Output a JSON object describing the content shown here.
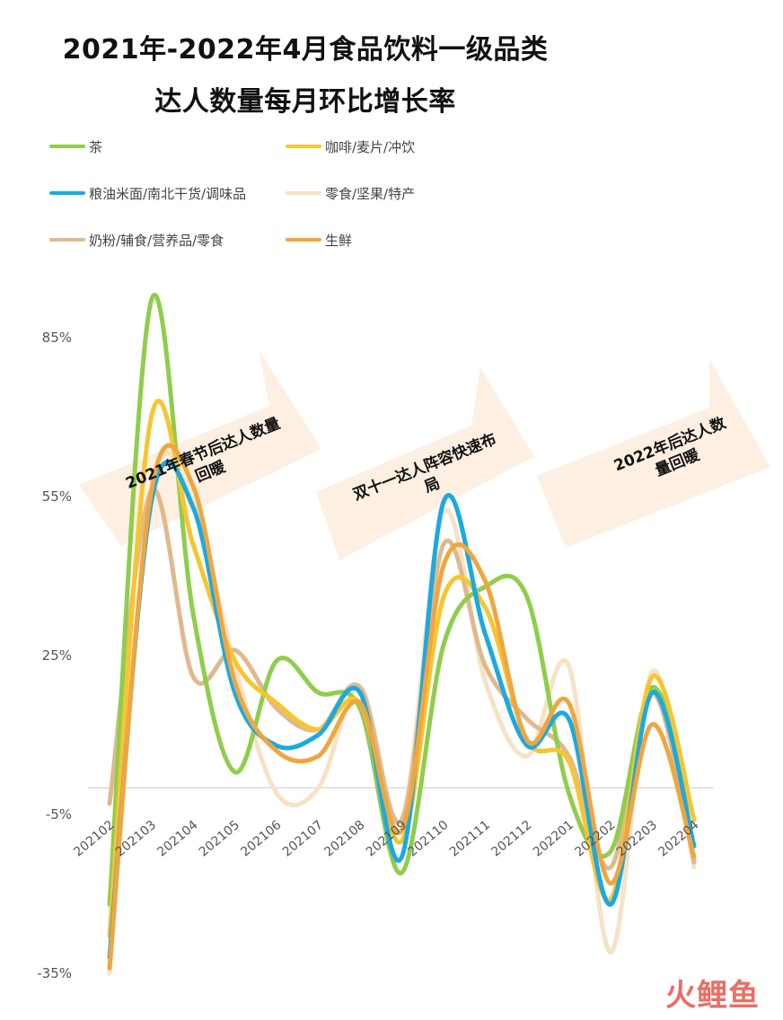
{
  "title_line1": "2021年-2022年4月食品饮料一级品类",
  "title_line2": "达人数量每月环比增长率",
  "watermark": "火鲤鱼",
  "colors": {
    "茶": "#8fcd4c",
    "咖啡/麦片/冲饮": "#f7c531",
    "粮油米面/南北干货/调味品": "#1ba9e1",
    "零食/坚果/特产": "#f6e2c4",
    "奶粉/辅食/营养品/零食": "#dfb98e",
    "生鲜": "#f0a640",
    "arrow": "#fcebd9"
  },
  "annotations": [
    {
      "line1": "2021年春节后达人数量",
      "line2": "回暖"
    },
    {
      "line1": "双十一达人阵容快速布",
      "line2": "局"
    },
    {
      "line1": "2022年后达人数",
      "line2": "量回暖"
    }
  ],
  "chart_data": {
    "type": "line",
    "categories": [
      "202102",
      "202103",
      "202104",
      "202105",
      "202106",
      "202107",
      "202108",
      "202109",
      "202110",
      "202111",
      "202112",
      "202201",
      "202202",
      "202203",
      "202204"
    ],
    "y_ticks": [
      "85%",
      "55%",
      "25%",
      "-5%",
      "-35%"
    ],
    "ylim": [
      -35,
      85
    ],
    "legend_position": "top",
    "series": [
      {
        "name": "茶",
        "values": [
          -22,
          92,
          33,
          3,
          24,
          18,
          15,
          -16,
          27,
          38,
          36,
          -1,
          -12,
          19,
          -6
        ]
      },
      {
        "name": "咖啡/麦片/冲饮",
        "values": [
          -28,
          70,
          46,
          24,
          16,
          11,
          16,
          -10,
          36,
          34,
          9,
          5,
          -21,
          21,
          -6
        ]
      },
      {
        "name": "粮油米面/南北干货/调味品",
        "values": [
          -32,
          54,
          53,
          18,
          8,
          10,
          18,
          -13,
          54,
          29,
          8,
          13,
          -22,
          18,
          -11
        ]
      },
      {
        "name": "零食/坚果/特产",
        "values": [
          -35,
          56,
          54,
          23,
          -1,
          0,
          19,
          -6,
          52,
          20,
          6,
          23,
          -31,
          22,
          -15
        ]
      },
      {
        "name": "奶粉/辅食/营养品/零食",
        "values": [
          -3,
          56,
          21,
          26,
          15,
          11,
          19,
          -6,
          46,
          23,
          13,
          6,
          -15,
          18,
          -14
        ]
      },
      {
        "name": "生鲜",
        "values": [
          -34,
          56,
          57,
          20,
          7,
          6,
          16,
          -8,
          42,
          39,
          9,
          16,
          -18,
          12,
          -13
        ]
      }
    ]
  }
}
